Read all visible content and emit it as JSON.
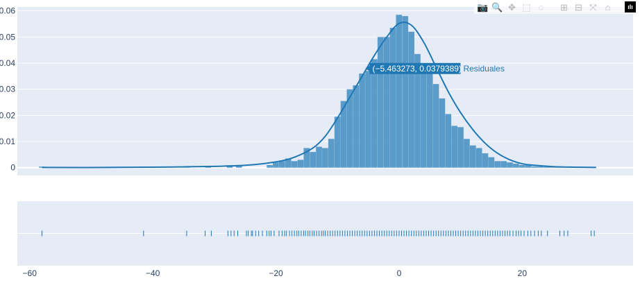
{
  "chart_data": [
    {
      "type": "bar",
      "subtype": "histogram-with-kde",
      "series_name": "Residuales",
      "color": "#1f77b4",
      "bar_color": "#5a9bc9",
      "plot_bg": "#e5ecf6",
      "ylim": [
        -0.003,
        0.0615
      ],
      "xlim": [
        -62,
        38
      ],
      "yticks": [
        0,
        0.01,
        0.02,
        0.03,
        0.04,
        0.05,
        0.06
      ],
      "ytick_labels": [
        "0",
        "0.01",
        "0.02",
        "0.03",
        "0.04",
        "0.05",
        "0.06"
      ],
      "bin_width": 1,
      "bins_x": [
        -21,
        -20,
        -19,
        -18,
        -17,
        -16,
        -15,
        -14,
        -13,
        -12,
        -11,
        -10,
        -9,
        -8,
        -7,
        -6,
        -5,
        -4,
        -3,
        -2,
        -1,
        0,
        1,
        2,
        3,
        4,
        5,
        6,
        7,
        8,
        9,
        10,
        11,
        12,
        13,
        14,
        15,
        16,
        17,
        18,
        19,
        20,
        21,
        22,
        23,
        24,
        25,
        26
      ],
      "bins_density": [
        0.001,
        0.002,
        0.0025,
        0.0035,
        0.0025,
        0.003,
        0.0075,
        0.006,
        0.008,
        0.0075,
        0.011,
        0.0195,
        0.0255,
        0.03,
        0.0315,
        0.036,
        0.037,
        0.0415,
        0.05,
        0.05,
        0.0535,
        0.0585,
        0.058,
        0.052,
        0.0435,
        0.039,
        0.0365,
        0.032,
        0.0265,
        0.0205,
        0.016,
        0.0155,
        0.011,
        0.0085,
        0.0075,
        0.0055,
        0.004,
        0.0025,
        0.0025,
        0.002,
        0.0015,
        0.001,
        0.001,
        0.0005,
        0.0005,
        0.0004,
        0.0003,
        0.0002
      ],
      "outlier_bins_x": [
        -58,
        -41.5,
        -34.5,
        -31,
        -27.5,
        -26
      ],
      "outlier_bins_density": [
        0.0004,
        0.0004,
        0.0004,
        0.0003,
        0.0009,
        0.0007
      ],
      "kde_x": [
        -58,
        -50,
        -40,
        -35,
        -30,
        -25,
        -20,
        -17,
        -14,
        -12,
        -10,
        -8,
        -6,
        -4,
        -2,
        0,
        2,
        4,
        6,
        8,
        10,
        12,
        14,
        16,
        18,
        20,
        22,
        25,
        28,
        32
      ],
      "kde_y": [
        0.0001,
        5e-05,
        0.0002,
        0.0003,
        0.0005,
        0.0009,
        0.0022,
        0.004,
        0.0075,
        0.012,
        0.019,
        0.027,
        0.035,
        0.043,
        0.05,
        0.0552,
        0.0545,
        0.048,
        0.0385,
        0.029,
        0.021,
        0.0145,
        0.0093,
        0.0055,
        0.003,
        0.0015,
        0.0009,
        0.0004,
        0.0002,
        0.0001
      ],
      "hover": {
        "x": -5.463273,
        "y": 0.0379389,
        "label": "(−5.463273, 0.0379389)",
        "series": "Residuales"
      }
    },
    {
      "type": "rug",
      "xlim": [
        -62,
        38
      ],
      "xticks": [
        -60,
        -40,
        -20,
        0,
        20
      ],
      "xtick_labels": [
        "−60",
        "−40",
        "−20",
        "0",
        "20"
      ],
      "rug_x": [
        -58,
        -41.5,
        -34.5,
        -31.5,
        -30.5,
        -27.8,
        -27.3,
        -26.8,
        -26.2,
        -24.8,
        -24.5,
        -24,
        -23.8,
        -23.3,
        -22.8,
        -22.2,
        -21.5,
        -21.1,
        -20.8,
        -20.3,
        -19.5,
        -19,
        -18.6,
        -18.3,
        -17.8,
        -17.4,
        -17,
        -16.6,
        -16.3,
        -15.9,
        -15.5,
        -15.2,
        -14.8,
        -14.5,
        -14.1,
        -13.8,
        -13.4,
        -13,
        -12.6,
        -12.3,
        -12,
        -11.6,
        -11.2,
        -10.8,
        -10.4,
        -10,
        -9.6,
        -9.2,
        -8.8,
        -8.4,
        -8,
        -7.6,
        -7.2,
        -6.8,
        -6.4,
        -6,
        -5.6,
        -5.2,
        -4.8,
        -4.4,
        -4,
        -3.6,
        -3.2,
        -2.8,
        -2.4,
        -2,
        -1.6,
        -1.2,
        -0.8,
        -0.4,
        0,
        0.4,
        0.8,
        1.2,
        1.6,
        2,
        2.4,
        2.8,
        3.2,
        3.6,
        4,
        4.4,
        4.8,
        5.2,
        5.6,
        6,
        6.4,
        6.8,
        7.2,
        7.6,
        8,
        8.4,
        8.8,
        9.2,
        9.6,
        10,
        10.4,
        10.8,
        11.2,
        11.6,
        12,
        12.4,
        12.8,
        13.2,
        13.6,
        14,
        14.4,
        14.8,
        15.2,
        15.6,
        16,
        16.4,
        16.8,
        17.2,
        17.6,
        18,
        18.5,
        19,
        19.4,
        19.8,
        20.3,
        20.9,
        21.4,
        22,
        22.6,
        23.1,
        24.1,
        26.1,
        26.8,
        27.4,
        31.2,
        31.7
      ]
    }
  ],
  "modebar": {
    "icons": [
      "camera-icon",
      "zoom-icon",
      "pan-icon",
      "box-select-icon",
      "lasso-select-icon",
      "zoom-in-icon",
      "zoom-out-icon",
      "autoscale-icon",
      "reset-axes-icon",
      "plotly-logo-icon"
    ],
    "glyphs": {
      "camera-icon": "📷",
      "zoom-icon": "🔍",
      "pan-icon": "✥",
      "box-select-icon": "⬚",
      "lasso-select-icon": "◌",
      "zoom-in-icon": "⊞",
      "zoom-out-icon": "⊟",
      "autoscale-icon": "⤧",
      "reset-axes-icon": "⌂",
      "plotly-logo-icon": "ılı"
    }
  }
}
